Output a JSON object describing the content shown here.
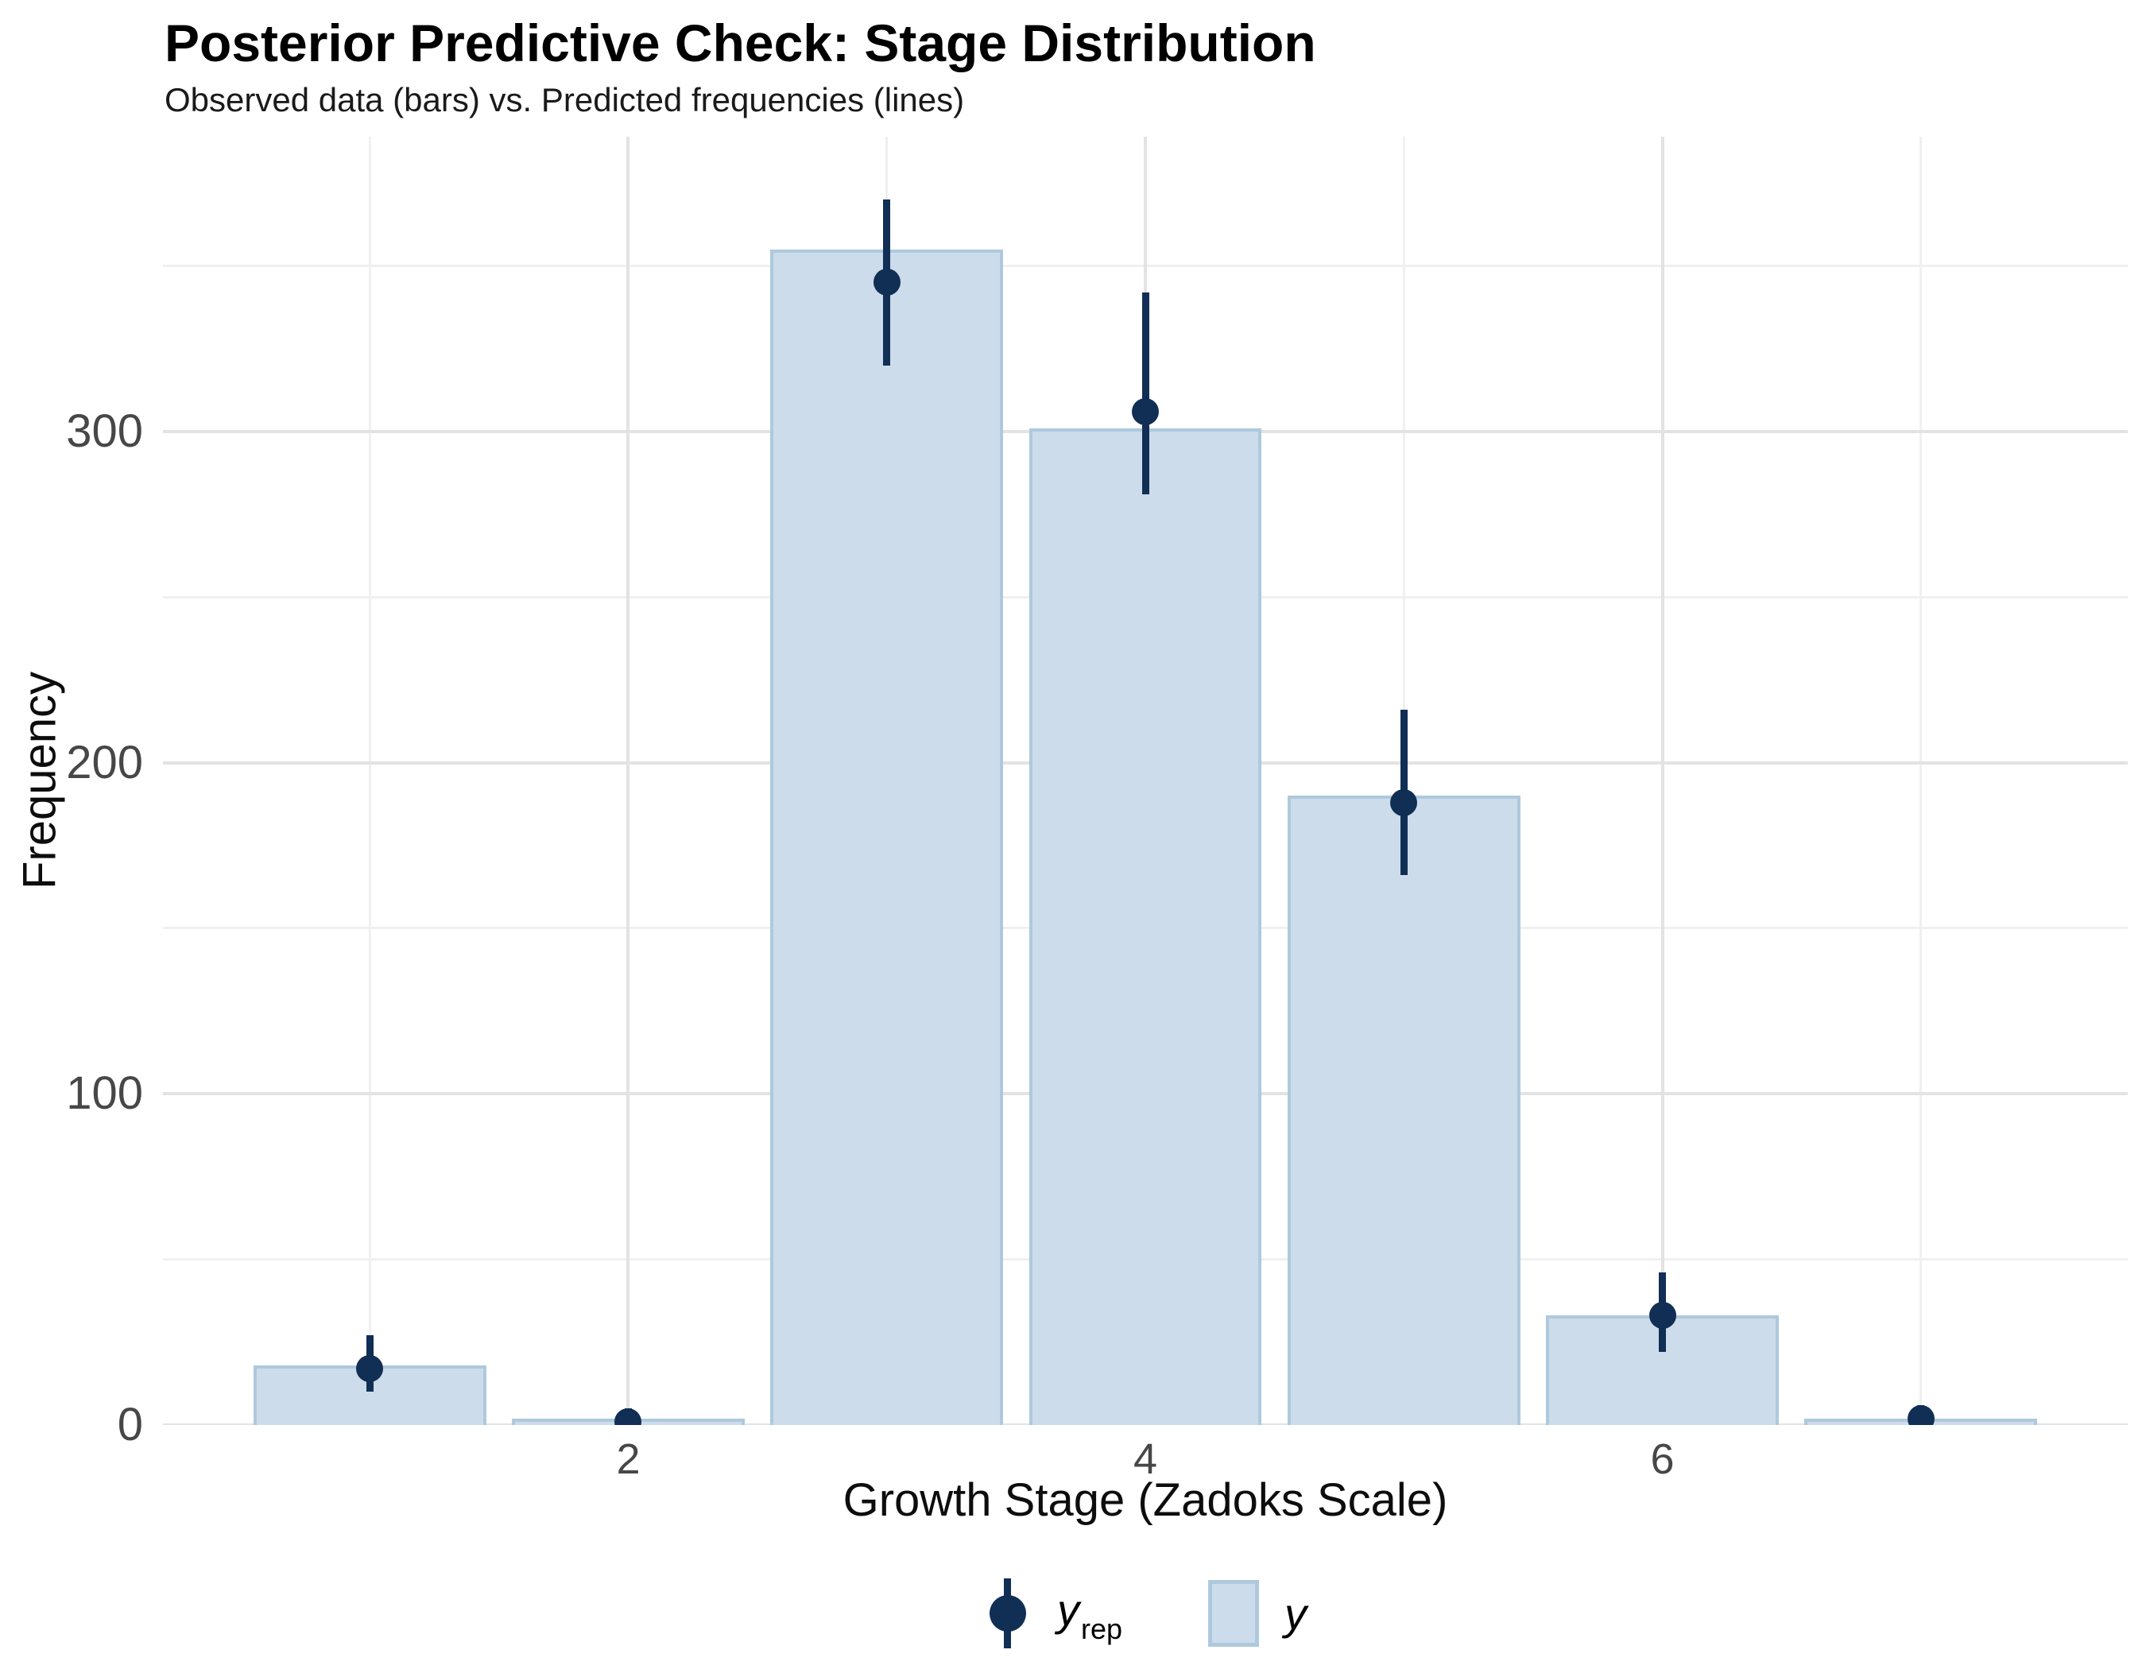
{
  "header": {
    "title": "Posterior Predictive Check: Stage Distribution",
    "subtitle": "Observed data (bars) vs. Predicted frequencies (lines)"
  },
  "axes": {
    "x_title": "Growth Stage (Zadoks Scale)",
    "y_title": "Frequency"
  },
  "legend": {
    "yrep": {
      "main": "y",
      "sub": "rep"
    },
    "y": {
      "main": "y"
    }
  },
  "colors": {
    "background": "#ffffff",
    "bar_fill": "#ccdcea",
    "bar_border": "#aec9dd",
    "point_navy": "#112e55",
    "grid_major": "#e3e3e3",
    "grid_minor": "#f0f0f0",
    "tick_text": "#474747"
  },
  "chart_data": {
    "type": "bar",
    "title": "Posterior Predictive Check: Stage Distribution",
    "subtitle": "Observed data (bars) vs. Predicted frequencies (lines)",
    "xlabel": "Growth Stage (Zadoks Scale)",
    "ylabel": "Frequency",
    "categories": [
      1,
      2,
      3,
      4,
      5,
      6,
      7
    ],
    "series": [
      {
        "name": "y",
        "type": "bar",
        "role": "observed-frequency",
        "values": [
          18,
          2,
          355,
          301,
          190,
          33,
          2
        ]
      },
      {
        "name": "y_rep",
        "type": "pointrange",
        "role": "predicted-frequency",
        "values": [
          17,
          1,
          345,
          306,
          188,
          33,
          2
        ],
        "ci_low": [
          10,
          0,
          320,
          281,
          166,
          22,
          0
        ],
        "ci_high": [
          27,
          5,
          370,
          342,
          216,
          46,
          6
        ]
      }
    ],
    "x_major_gridlines": [
      2,
      4,
      6
    ],
    "x_minor_gridlines": [
      1,
      3,
      5,
      7
    ],
    "y_major_gridlines": [
      0,
      100,
      200,
      300
    ],
    "y_minor_gridlines": [
      50,
      150,
      250,
      350
    ],
    "xlim": [
      0.2,
      7.8
    ],
    "ylim": [
      0,
      389
    ],
    "bar_width_units": 0.9,
    "grid": true,
    "legend_position": "bottom"
  }
}
